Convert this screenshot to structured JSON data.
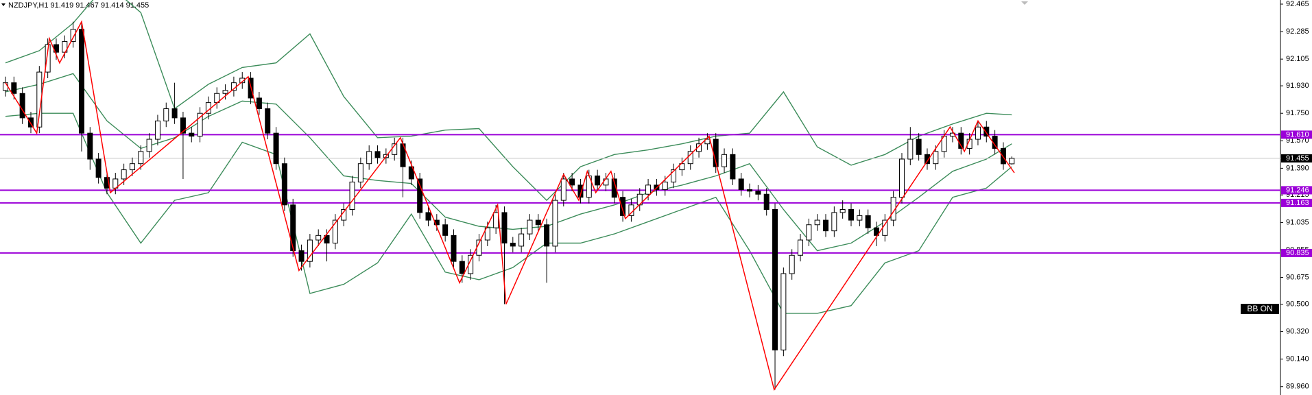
{
  "chart_data": {
    "type": "candlestick",
    "title": "NZDJPY,H1  91.419 91.467 91.414 91.455",
    "ylim": [
      89.905,
      92.492
    ],
    "yticks": [
      92.465,
      92.285,
      92.105,
      {
        "value": 91.93,
        "label": "91.930"
      },
      {
        "value": 91.75,
        "label": "91.750"
      },
      {
        "value": 91.57,
        "label": "91.570"
      },
      {
        "value": 91.39,
        "label": "91.390"
      },
      91.215,
      91.035,
      90.855,
      90.675,
      {
        "value": 90.5,
        "label": "90.500"
      },
      {
        "value": 90.32,
        "label": "90.320"
      },
      {
        "value": 90.14,
        "label": "90.140"
      },
      {
        "value": 89.96,
        "label": "89.960"
      }
    ],
    "up_color": "#ffffff",
    "down_color": "#000000",
    "open": [
      91.9,
      91.95,
      91.88,
      91.72,
      91.66,
      92.02,
      92.2,
      92.15,
      92.22,
      92.3,
      91.62,
      91.45,
      91.33,
      91.26,
      91.32,
      91.38,
      91.42,
      91.5,
      91.58,
      91.7,
      91.78,
      91.72,
      91.62,
      91.6,
      91.75,
      91.82,
      91.88,
      91.9,
      91.95,
      91.98,
      91.85,
      91.78,
      91.62,
      91.42,
      91.15,
      90.85,
      90.78,
      90.92,
      90.95,
      90.9,
      91.05,
      91.12,
      91.3,
      91.42,
      91.5,
      91.46,
      91.48,
      91.55,
      91.4,
      91.32,
      91.1,
      91.05,
      91.02,
      90.95,
      90.78,
      90.7,
      90.82,
      90.92,
      91.0,
      91.1,
      90.9,
      90.88,
      90.96,
      91.05,
      91.02,
      90.88,
      91.18,
      91.32,
      91.28,
      91.2,
      91.34,
      91.28,
      91.32,
      91.2,
      91.08,
      91.15,
      91.22,
      91.28,
      91.25,
      91.3,
      91.38,
      91.42,
      91.5,
      91.55,
      91.58,
      91.4,
      91.48,
      91.32,
      91.25,
      91.24,
      91.22,
      91.12,
      90.2,
      90.7,
      90.82,
      90.92,
      91.02,
      91.05,
      90.98,
      91.1,
      91.12,
      91.05,
      91.08,
      91.0,
      90.95,
      91.05,
      91.2,
      91.45,
      91.58,
      91.48,
      91.42,
      91.5,
      91.6,
      91.62,
      91.52,
      91.58,
      91.66,
      91.6,
      91.52,
      91.419
    ],
    "high": [
      91.99,
      91.99,
      91.92,
      91.76,
      92.06,
      92.24,
      92.24,
      92.26,
      92.35,
      92.34,
      91.66,
      91.49,
      91.37,
      91.36,
      91.42,
      91.46,
      91.54,
      91.62,
      91.74,
      91.82,
      91.95,
      91.76,
      91.66,
      91.79,
      91.86,
      91.92,
      91.94,
      91.99,
      92.02,
      92.02,
      91.89,
      91.82,
      91.66,
      91.46,
      91.19,
      90.89,
      90.96,
      90.99,
      90.99,
      91.09,
      91.16,
      91.34,
      91.46,
      91.54,
      91.54,
      91.52,
      91.59,
      91.59,
      91.44,
      91.36,
      91.14,
      91.09,
      91.06,
      90.99,
      90.82,
      90.86,
      90.96,
      91.04,
      91.15,
      91.14,
      90.94,
      91.0,
      91.09,
      91.09,
      91.06,
      91.22,
      91.36,
      91.36,
      91.32,
      91.38,
      91.38,
      91.36,
      91.36,
      91.24,
      91.19,
      91.26,
      91.32,
      91.32,
      91.34,
      91.42,
      91.46,
      91.54,
      91.59,
      91.62,
      91.62,
      91.52,
      91.52,
      91.36,
      91.29,
      91.28,
      91.26,
      91.16,
      90.74,
      90.86,
      90.96,
      91.06,
      91.09,
      91.09,
      91.14,
      91.18,
      91.16,
      91.12,
      91.12,
      91.04,
      91.09,
      91.24,
      91.49,
      91.66,
      91.62,
      91.52,
      91.54,
      91.64,
      91.66,
      91.66,
      91.62,
      91.7,
      91.7,
      91.64,
      91.56,
      91.467
    ],
    "low": [
      91.86,
      91.84,
      91.68,
      91.62,
      91.62,
      91.98,
      92.1,
      92.11,
      92.18,
      91.5,
      91.38,
      91.29,
      91.22,
      91.22,
      91.28,
      91.34,
      91.38,
      91.46,
      91.54,
      91.66,
      91.68,
      91.32,
      91.56,
      91.56,
      91.71,
      91.78,
      91.84,
      91.86,
      91.91,
      91.81,
      91.74,
      91.58,
      91.38,
      91.11,
      90.81,
      90.72,
      90.74,
      90.88,
      90.78,
      90.86,
      91.01,
      91.08,
      91.26,
      91.38,
      91.42,
      91.42,
      91.44,
      91.2,
      91.28,
      91.06,
      91.01,
      90.98,
      90.91,
      90.74,
      90.64,
      90.66,
      90.78,
      90.88,
      90.96,
      90.5,
      90.84,
      90.84,
      90.92,
      90.98,
      90.64,
      90.84,
      91.14,
      91.24,
      91.16,
      91.16,
      91.24,
      91.24,
      91.16,
      91.04,
      91.04,
      91.11,
      91.18,
      91.21,
      91.21,
      91.26,
      91.34,
      91.38,
      91.46,
      91.51,
      91.36,
      91.36,
      91.28,
      91.21,
      91.2,
      91.18,
      91.08,
      89.94,
      90.16,
      90.66,
      90.78,
      90.88,
      90.98,
      90.94,
      90.94,
      91.06,
      91.01,
      91.01,
      90.96,
      90.88,
      90.91,
      91.01,
      91.16,
      91.41,
      91.44,
      91.38,
      91.38,
      91.46,
      91.56,
      91.48,
      91.48,
      91.54,
      91.56,
      91.48,
      91.38,
      91.414
    ],
    "close": [
      91.95,
      91.88,
      91.72,
      91.66,
      92.02,
      92.2,
      92.15,
      92.22,
      92.3,
      91.62,
      91.45,
      91.33,
      91.26,
      91.32,
      91.38,
      91.42,
      91.5,
      91.58,
      91.7,
      91.78,
      91.72,
      91.62,
      91.6,
      91.75,
      91.82,
      91.88,
      91.9,
      91.95,
      91.98,
      91.85,
      91.78,
      91.62,
      91.42,
      91.15,
      90.85,
      90.78,
      90.92,
      90.95,
      90.9,
      91.05,
      91.12,
      91.3,
      91.42,
      91.5,
      91.46,
      91.48,
      91.55,
      91.4,
      91.32,
      91.1,
      91.05,
      91.02,
      90.95,
      90.78,
      90.7,
      90.82,
      90.92,
      91.0,
      91.1,
      90.9,
      90.88,
      90.96,
      91.05,
      91.02,
      90.88,
      91.18,
      91.32,
      91.28,
      91.2,
      91.34,
      91.28,
      91.32,
      91.2,
      91.08,
      91.15,
      91.22,
      91.28,
      91.25,
      91.3,
      91.38,
      91.42,
      91.5,
      91.55,
      91.58,
      91.4,
      91.48,
      91.32,
      91.25,
      91.24,
      91.22,
      91.12,
      90.2,
      90.7,
      90.82,
      90.92,
      91.02,
      91.05,
      90.98,
      91.1,
      91.12,
      91.05,
      91.08,
      91.0,
      90.95,
      91.05,
      91.2,
      91.45,
      91.58,
      91.48,
      91.42,
      91.5,
      91.6,
      91.62,
      91.52,
      91.58,
      91.66,
      91.6,
      91.52,
      91.419,
      91.455
    ],
    "bands_x": [
      0,
      4,
      8,
      12,
      16,
      20,
      24,
      28,
      32,
      36,
      40,
      44,
      48,
      52,
      56,
      60,
      64,
      68,
      72,
      76,
      80,
      84,
      88,
      92,
      96,
      100,
      104,
      108,
      112,
      116,
      119
    ],
    "bands": [
      {
        "color": "#3c8c5a",
        "values": [
          92.08,
          92.16,
          92.34,
          92.6,
          92.41,
          91.78,
          91.94,
          92.05,
          92.08,
          92.27,
          91.86,
          91.59,
          91.6,
          91.64,
          91.65,
          91.4,
          91.18,
          91.4,
          91.48,
          91.51,
          91.55,
          91.6,
          91.62,
          91.89,
          91.53,
          91.41,
          91.48,
          91.6,
          91.68,
          91.75,
          91.74
        ]
      },
      {
        "color": "#3c8c5a",
        "values": [
          91.89,
          91.94,
          92.01,
          91.7,
          91.52,
          91.59,
          91.73,
          91.83,
          91.81,
          91.59,
          91.34,
          91.31,
          91.29,
          91.07,
          91.01,
          90.99,
          91.01,
          91.09,
          91.15,
          91.23,
          91.28,
          91.34,
          91.42,
          91.12,
          90.85,
          90.9,
          91.04,
          91.2,
          91.37,
          91.45,
          91.55
        ]
      },
      {
        "color": "#3c8c5a",
        "values": [
          91.73,
          91.75,
          91.75,
          91.23,
          90.9,
          91.18,
          91.23,
          91.56,
          91.48,
          90.57,
          90.63,
          90.77,
          91.09,
          90.71,
          90.66,
          90.74,
          90.9,
          90.9,
          90.96,
          91.04,
          91.12,
          91.2,
          90.85,
          90.44,
          90.44,
          90.49,
          90.77,
          90.85,
          91.2,
          91.26,
          91.4
        ]
      }
    ],
    "zigzag_color": "#ff0000",
    "zigzag_x": [
      0,
      3.7,
      5.2,
      6.4,
      9,
      12.4,
      28.7,
      34.7,
      46.7,
      53.7,
      58.2,
      59.2,
      66,
      67.8,
      68.8,
      69.8,
      71.6,
      73.3,
      83.2,
      90.9,
      111.7,
      113.4,
      115,
      119.3
    ],
    "zigzag_values": [
      91.95,
      91.62,
      92.24,
      92.08,
      92.35,
      91.23,
      91.99,
      90.72,
      91.59,
      90.64,
      91.15,
      90.5,
      91.35,
      91.18,
      91.37,
      91.23,
      91.37,
      91.06,
      91.6,
      89.94,
      91.66,
      91.5,
      91.7,
      91.36
    ],
    "level_color": "#9b00d8",
    "levels": [
      {
        "value": 91.61,
        "label": "91.610"
      },
      91.246,
      91.163,
      90.835
    ],
    "last_price": 91.455,
    "indicator_label": "BB ON"
  }
}
